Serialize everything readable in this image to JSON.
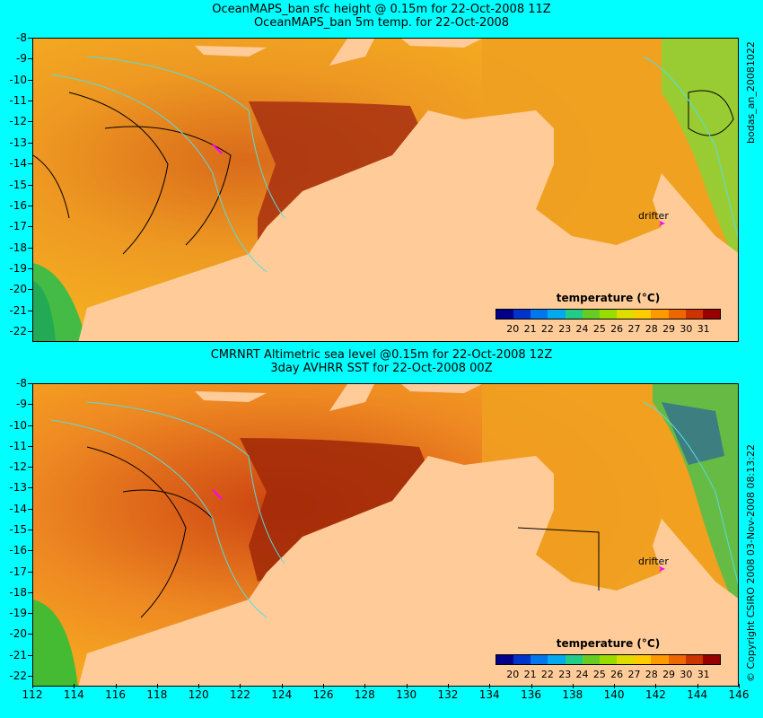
{
  "top": {
    "title_line1": "OceanMAPS_ban sfc height @ 0.15m for 22-Oct-2008 11Z",
    "title_line2": "OceanMAPS_ban 5m temp. for 22-Oct-2008",
    "side_label": "bodas_an_20081022",
    "drifter_label": "drifter"
  },
  "bottom": {
    "title_line1": "CMRNRT Altimetric sea level  @0.15m  for 22-Oct-2008 12Z",
    "title_line2": "3day AVHRR SST for 22-Oct-2008 00Z",
    "side_label": "© Copyright CSIRO 2008   03-Nov-2008 08:13:22",
    "drifter_label": "drifter"
  },
  "legend": {
    "title": "temperature (°C)",
    "labels": [
      "20",
      "21",
      "22",
      "23",
      "24",
      "25",
      "26",
      "27",
      "28",
      "29",
      "30",
      "31"
    ],
    "colors": [
      "#00008b",
      "#0033cc",
      "#0077ee",
      "#00aaee",
      "#22cc88",
      "#66cc22",
      "#99dd00",
      "#dddd00",
      "#ffcc00",
      "#ff9900",
      "#ee6600",
      "#cc3300",
      "#990000"
    ]
  },
  "axes": {
    "lat_ticks": [
      "-8",
      "-9",
      "-10",
      "-11",
      "-12",
      "-13",
      "-14",
      "-15",
      "-16",
      "-17",
      "-18",
      "-19",
      "-20",
      "-21",
      "-22"
    ],
    "lon_ticks": [
      "112",
      "114",
      "116",
      "118",
      "120",
      "122",
      "124",
      "126",
      "128",
      "130",
      "132",
      "134",
      "136",
      "138",
      "140",
      "142",
      "144",
      "146"
    ]
  },
  "colors": {
    "land": "#ffcc99",
    "background": "#00ffff",
    "contour": "#000000",
    "isobath": "#55dddd",
    "drifter": "#ff00ff"
  }
}
